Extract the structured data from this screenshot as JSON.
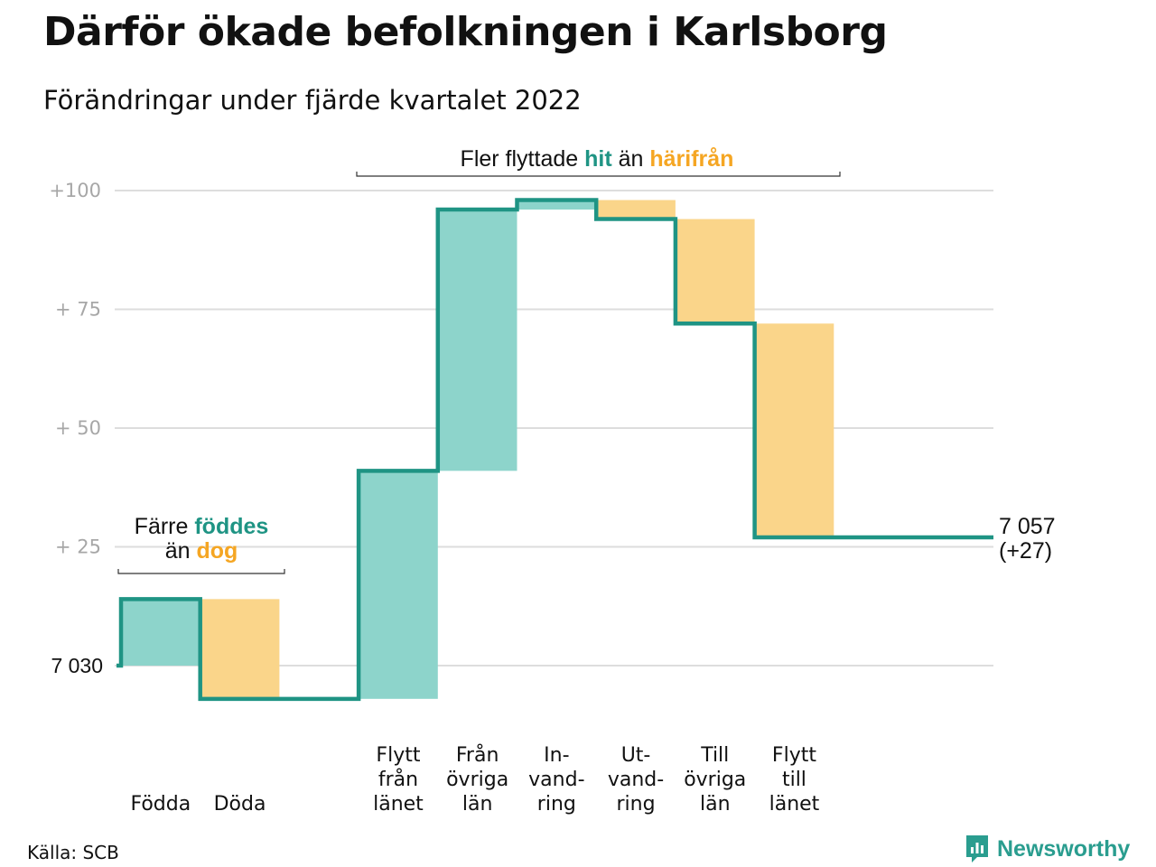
{
  "title": "Därför ökade befolkningen i Karlsborg",
  "subtitle": "Förändringar under fjärde kvartalet 2022",
  "source": "Källa: SCB",
  "brand": "Newsworthy",
  "colors": {
    "increase": "#8dd4cb",
    "decrease": "#fad58a",
    "line": "#1f9484",
    "teal_text": "#1f9484",
    "orange_text": "#f5a623",
    "grid": "#dddddd"
  },
  "annotations": {
    "top": {
      "before": "Fler flyttade ",
      "hit": "hit",
      "middle": " än ",
      "harifran": "härifrån"
    },
    "left": {
      "line1_before": "Färre ",
      "foddes": "föddes",
      "line2_before": "än ",
      "dog": "dog"
    }
  },
  "chart_data": {
    "type": "waterfall",
    "title": "Därför ökade befolkningen i Karlsborg",
    "subtitle": "Förändringar under fjärde kvartalet 2022",
    "start_value": 7030,
    "start_label": "7 030",
    "end_value": 7057,
    "end_label": "7 057",
    "end_change_label": "(+27)",
    "y_ticks": [
      {
        "value": 25,
        "label": "+ 25"
      },
      {
        "value": 50,
        "label": "+ 50"
      },
      {
        "value": 75,
        "label": "+ 75"
      },
      {
        "value": 100,
        "label": "+100"
      }
    ],
    "ylim": [
      -8,
      105
    ],
    "grid": true,
    "steps": [
      {
        "label_lines": [
          "",
          "",
          "Födda"
        ],
        "change": 14
      },
      {
        "label_lines": [
          "",
          "",
          "Döda"
        ],
        "change": -21
      },
      {
        "label_lines": [
          "",
          "",
          ""
        ],
        "change": 0
      },
      {
        "label_lines": [
          "Flytt",
          "från",
          "länet"
        ],
        "change": 48
      },
      {
        "label_lines": [
          "Från",
          "övriga",
          "län"
        ],
        "change": 55
      },
      {
        "label_lines": [
          "In-",
          "vand-",
          "ring"
        ],
        "change": 2
      },
      {
        "label_lines": [
          "Ut-",
          "vand-",
          "ring"
        ],
        "change": -4
      },
      {
        "label_lines": [
          "Till",
          "övriga",
          "län"
        ],
        "change": -22
      },
      {
        "label_lines": [
          "Flytt",
          "till",
          "länet"
        ],
        "change": -45
      }
    ]
  }
}
